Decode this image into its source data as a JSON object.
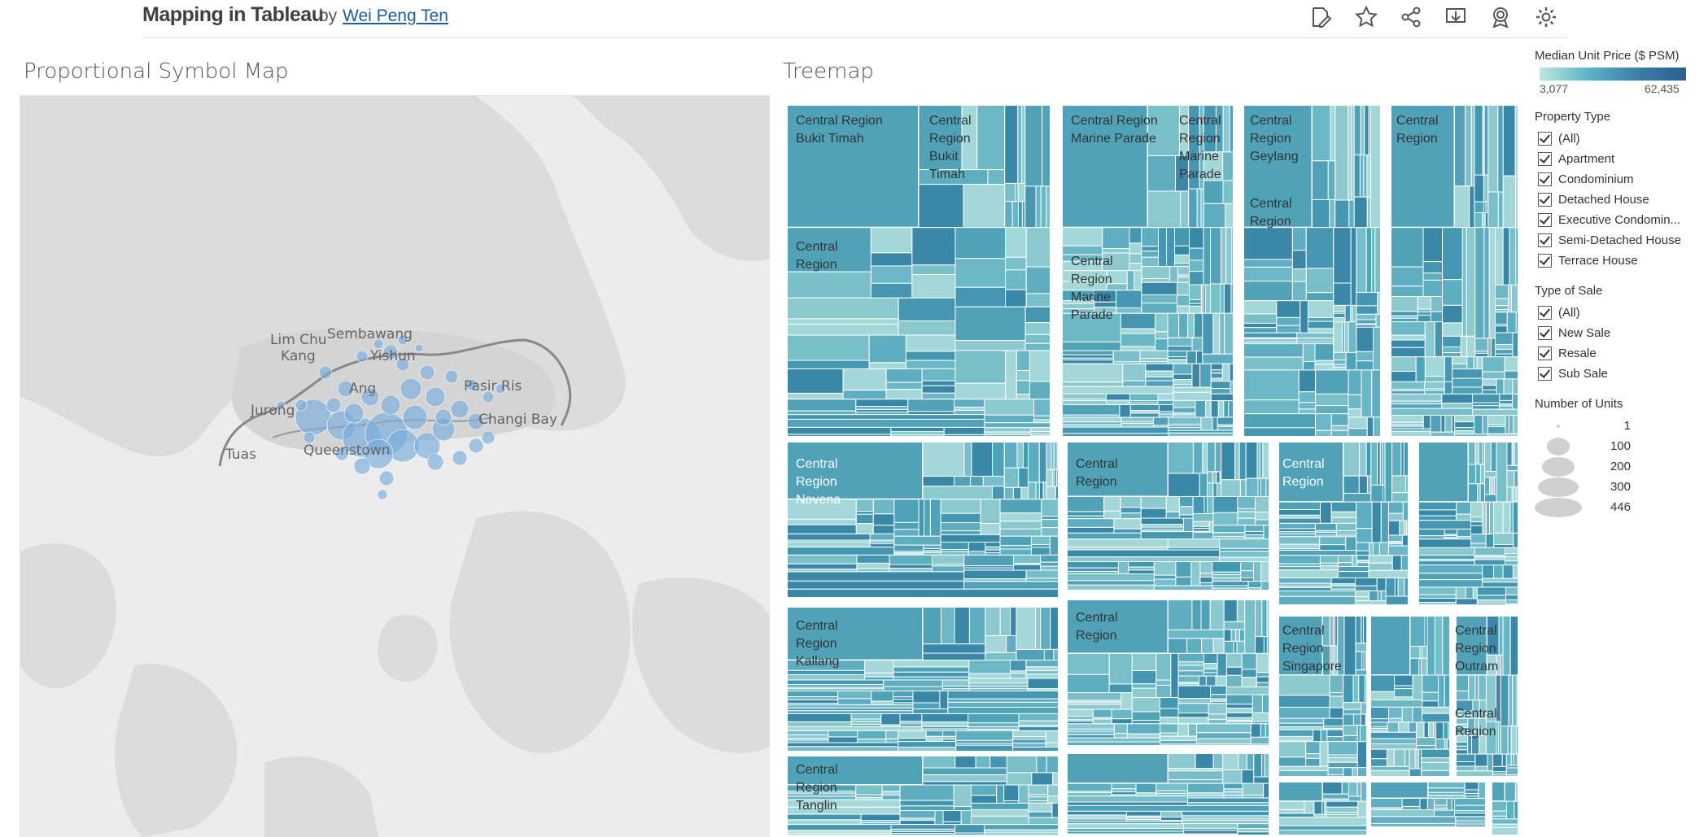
{
  "header": {
    "title": "Mapping in Tableau",
    "by": "by",
    "author": "Wei Peng Ten",
    "icons": [
      "edit-icon",
      "favorite-star-icon",
      "share-icon",
      "download-icon",
      "badge-icon",
      "settings-gear-icon"
    ]
  },
  "map": {
    "title": "Proportional Symbol Map",
    "place_labels": [
      "Lim Chu",
      "Kang",
      "Sembawang",
      "Yishun",
      "Ang",
      "Pasir Ris",
      "Jurong",
      "Tuas",
      "Queenstown",
      "Changi Bay"
    ]
  },
  "treemap": {
    "title": "Treemap",
    "labels": [
      "Central Region\nBukit Timah",
      "Central\nRegion\nBukit\nTimah",
      "Central\nRegion",
      "Central Region\nMarine Parade",
      "Central\nRegion\nMarine\nParade",
      "Central\nRegion\nMarine\nParade",
      "Central\nRegion\nGeylang",
      "Central\nRegion",
      "Central\nRegion",
      "Central\nRegion\nNovena",
      "Central\nRegion",
      "Central\nRegion",
      "Central\nRegion\nKallang",
      "Central\nRegion",
      "Central\nRegion\nSingapore",
      "Central\nRegion\nOutram",
      "Central\nRegion",
      "Central\nRegion\nTanglin"
    ]
  },
  "legend": {
    "color_title": "Median Unit Price ($ PSM)",
    "color_min": "3,077",
    "color_max": "62,435",
    "property_type": {
      "title": "Property Type",
      "options": [
        "(All)",
        "Apartment",
        "Condominium",
        "Detached House",
        "Executive Condomin...",
        "Semi-Detached House",
        "Terrace House"
      ]
    },
    "type_of_sale": {
      "title": "Type of Sale",
      "options": [
        "(All)",
        "New Sale",
        "Resale",
        "Sub Sale"
      ]
    },
    "units": {
      "title": "Number of Units",
      "values": [
        "1",
        "100",
        "200",
        "300",
        "446"
      ]
    }
  },
  "colors": {
    "tile_light": "#9fd4d6",
    "tile_mid": "#6cb9c6",
    "tile_dark": "#3d94b0",
    "bubble": "#7aaedc"
  }
}
